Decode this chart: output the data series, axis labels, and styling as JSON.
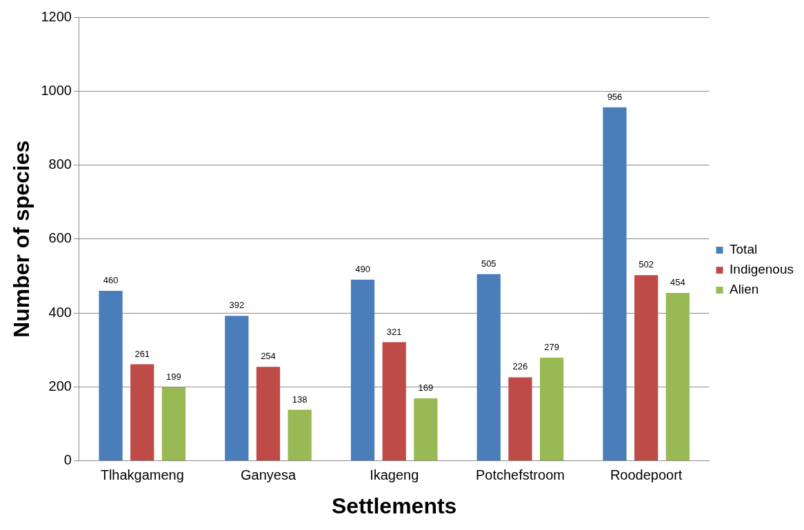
{
  "chart_data": {
    "type": "bar",
    "xlabel": "Settlements",
    "ylabel": "Number of species",
    "categories": [
      "Tlhakgameng",
      "Ganyesa",
      "Ikageng",
      "Potchefstroom",
      "Roodepoort"
    ],
    "series": [
      {
        "name": "Total",
        "color": "#4a7ebb",
        "values": [
          460,
          392,
          490,
          505,
          956
        ]
      },
      {
        "name": "Indigenous",
        "color": "#be4b48",
        "values": [
          261,
          254,
          321,
          226,
          502
        ]
      },
      {
        "name": "Alien",
        "color": "#98b954",
        "values": [
          199,
          138,
          169,
          279,
          454
        ]
      }
    ],
    "ylim": [
      0,
      1200
    ],
    "yticks": [
      0,
      200,
      400,
      600,
      800,
      1000,
      1200
    ],
    "grid": "y",
    "legend": "right",
    "data_labels": true
  }
}
